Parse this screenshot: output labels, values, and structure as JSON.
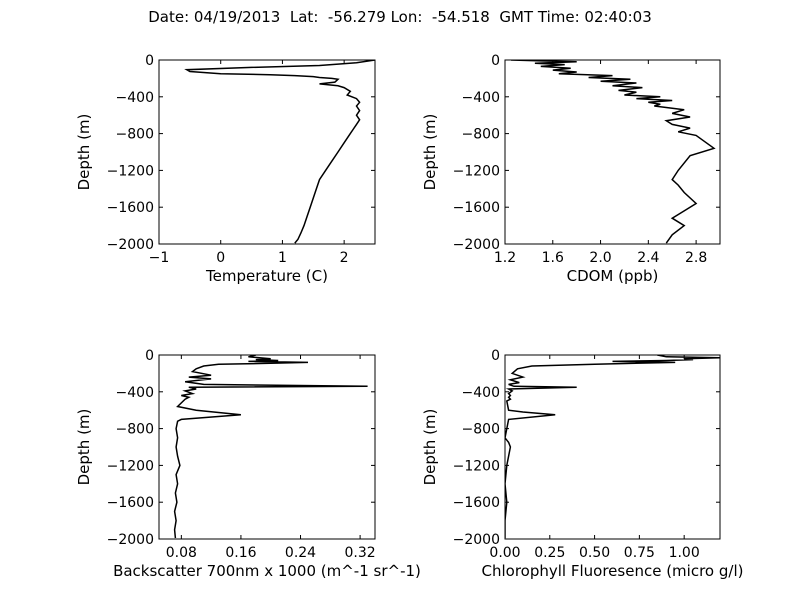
{
  "figure": {
    "title": "Date: 04/19/2013  Lat:  -56.279 Lon:  -54.518  GMT Time: 02:40:03"
  },
  "chart_data": [
    {
      "type": "line",
      "id": "temperature",
      "xlabel": "Temperature (C)",
      "ylabel": "Depth (m)",
      "xlim": [
        -1,
        2.5
      ],
      "ylim": [
        -2000,
        0
      ],
      "xticks": [
        -1,
        0,
        1,
        2
      ],
      "xtick_labels": [
        "−1",
        "0",
        "1",
        "2"
      ],
      "yticks": [
        0,
        -400,
        -800,
        -1200,
        -1600,
        -2000
      ],
      "ytick_labels": [
        "0",
        "−400",
        "−800",
        "−1200",
        "−1600",
        "−2000"
      ],
      "series": [
        {
          "x": [
            2.5,
            2.2,
            1.6,
            0.5,
            -0.55,
            -0.5,
            0.0,
            0.8,
            1.2,
            1.5,
            1.6,
            1.8,
            1.9,
            1.85,
            1.6,
            1.9,
            2.0,
            2.1,
            2.05,
            2.2,
            2.25,
            2.2,
            2.25,
            2.2,
            2.25,
            2.2,
            2.15,
            2.1,
            2.0,
            1.9,
            1.8,
            1.7,
            1.6,
            1.55,
            1.5,
            1.45,
            1.4,
            1.35,
            1.3,
            1.25,
            1.2
          ],
          "y": [
            0,
            -30,
            -60,
            -80,
            -105,
            -125,
            -150,
            -160,
            -170,
            -180,
            -190,
            -200,
            -210,
            -240,
            -260,
            -280,
            -300,
            -340,
            -380,
            -420,
            -460,
            -500,
            -550,
            -600,
            -650,
            -700,
            -750,
            -800,
            -900,
            -1000,
            -1100,
            -1200,
            -1300,
            -1400,
            -1500,
            -1600,
            -1700,
            -1800,
            -1880,
            -1950,
            -1990
          ]
        }
      ]
    },
    {
      "type": "line",
      "id": "cdom",
      "xlabel": "CDOM (ppb)",
      "ylabel": "Depth (m)",
      "xlim": [
        1.2,
        3.0
      ],
      "ylim": [
        -2000,
        0
      ],
      "xticks": [
        1.2,
        1.6,
        2.0,
        2.4,
        2.8
      ],
      "xtick_labels": [
        "1.2",
        "1.6",
        "2.0",
        "2.4",
        "2.8"
      ],
      "yticks": [
        0,
        -400,
        -800,
        -1200,
        -1600,
        -2000
      ],
      "ytick_labels": [
        "0",
        "−400",
        "−800",
        "−1200",
        "−1600",
        "−2000"
      ],
      "series": [
        {
          "x": [
            1.25,
            1.5,
            1.8,
            1.45,
            1.7,
            1.5,
            1.75,
            1.6,
            1.8,
            1.65,
            2.1,
            1.9,
            2.25,
            2.0,
            2.3,
            2.1,
            2.35,
            2.15,
            2.3,
            2.2,
            2.5,
            2.3,
            2.6,
            2.4,
            2.5,
            2.45,
            2.7,
            2.6,
            2.75,
            2.55,
            2.6,
            2.75,
            2.65,
            2.8,
            2.95,
            2.75,
            2.65,
            2.6,
            2.65,
            2.7,
            2.8,
            2.7,
            2.6,
            2.7,
            2.6,
            2.55
          ],
          "y": [
            0,
            -10,
            -20,
            -35,
            -50,
            -70,
            -90,
            -110,
            -130,
            -150,
            -170,
            -190,
            -210,
            -230,
            -250,
            -280,
            -300,
            -330,
            -350,
            -380,
            -400,
            -420,
            -440,
            -460,
            -480,
            -500,
            -540,
            -580,
            -620,
            -660,
            -700,
            -740,
            -780,
            -820,
            -960,
            -1040,
            -1200,
            -1300,
            -1360,
            -1440,
            -1560,
            -1640,
            -1720,
            -1800,
            -1900,
            -1990
          ]
        }
      ]
    },
    {
      "type": "line",
      "id": "backscatter",
      "xlabel": "Backscatter 700nm x 1000 (m^-1 sr^-1)",
      "ylabel": "Depth (m)",
      "xlim": [
        0.05,
        0.34
      ],
      "ylim": [
        -2000,
        0
      ],
      "xticks": [
        0.08,
        0.16,
        0.24,
        0.32
      ],
      "xtick_labels": [
        "0.08",
        "0.16",
        "0.24",
        "0.32"
      ],
      "yticks": [
        0,
        -400,
        -800,
        -1200,
        -1600,
        -2000
      ],
      "ytick_labels": [
        "0",
        "−400",
        "−800",
        "−1200",
        "−1600",
        "−2000"
      ],
      "series": [
        {
          "x": [
            0.18,
            0.17,
            0.2,
            0.18,
            0.21,
            0.17,
            0.25,
            0.2,
            0.13,
            0.11,
            0.1,
            0.095,
            0.12,
            0.09,
            0.12,
            0.085,
            0.11,
            0.33,
            0.09,
            0.1,
            0.085,
            0.095,
            0.08,
            0.09,
            0.085,
            0.075,
            0.1,
            0.16,
            0.08,
            0.075,
            0.073,
            0.075,
            0.073,
            0.075,
            0.078,
            0.073,
            0.075,
            0.072,
            0.074,
            0.071,
            0.073,
            0.071,
            0.072
          ],
          "y": [
            0,
            -20,
            -40,
            -50,
            -60,
            -70,
            -80,
            -90,
            -100,
            -120,
            -150,
            -180,
            -220,
            -240,
            -260,
            -290,
            -320,
            -340,
            -350,
            -370,
            -390,
            -420,
            -440,
            -460,
            -480,
            -560,
            -600,
            -650,
            -700,
            -720,
            -800,
            -900,
            -1000,
            -1100,
            -1200,
            -1300,
            -1400,
            -1500,
            -1600,
            -1700,
            -1800,
            -1900,
            -1990
          ]
        }
      ]
    },
    {
      "type": "line",
      "id": "chlorophyll",
      "xlabel": "Chlorophyll Fluoresence (micro g/l)",
      "ylabel": "Depth (m)",
      "xlim": [
        0,
        1.2
      ],
      "ylim": [
        -2000,
        0
      ],
      "xticks": [
        0.0,
        0.25,
        0.5,
        0.75,
        1.0
      ],
      "xtick_labels": [
        "0.00",
        "0.25",
        "0.50",
        "0.75",
        "1.00"
      ],
      "yticks": [
        0,
        -400,
        -800,
        -1200,
        -1600,
        -2000
      ],
      "ytick_labels": [
        "0",
        "−400",
        "−800",
        "−1200",
        "−1600",
        "−2000"
      ],
      "series": [
        {
          "x": [
            0.85,
            0.9,
            1.2,
            1.0,
            1.05,
            0.9,
            0.6,
            0.95,
            0.5,
            0.15,
            0.07,
            0.04,
            0.1,
            0.03,
            0.08,
            0.02,
            0.05,
            0.4,
            0.02,
            0.04,
            0.02,
            0.03,
            0.02,
            0.03,
            0.01,
            0.02,
            0.1,
            0.28,
            0.02,
            0.01,
            0.0,
            0.02,
            0.03,
            0.01,
            0.0,
            0.01,
            0.0,
            0.0,
            0.0
          ],
          "y": [
            0,
            -20,
            -30,
            -40,
            -50,
            -60,
            -70,
            -80,
            -100,
            -120,
            -150,
            -200,
            -240,
            -270,
            -300,
            -320,
            -340,
            -350,
            -370,
            -390,
            -420,
            -440,
            -460,
            -480,
            -500,
            -600,
            -620,
            -650,
            -700,
            -800,
            -900,
            -950,
            -1000,
            -1200,
            -1400,
            -1600,
            -1800,
            -1900,
            -1990
          ]
        }
      ]
    }
  ]
}
